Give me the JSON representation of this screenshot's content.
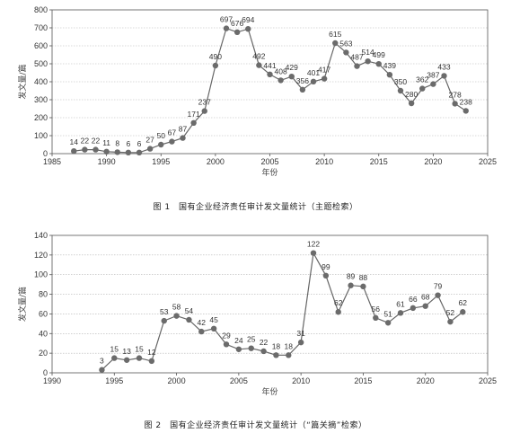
{
  "chart_data": [
    {
      "type": "line",
      "caption": "图 1　国有企业经济责任审计发文量统计（主题检索）",
      "xlabel": "年份",
      "ylabel": "发文量/篇",
      "xlim": [
        1985,
        2025
      ],
      "ylim": [
        0,
        800
      ],
      "xticks": [
        1985,
        1990,
        1995,
        2000,
        2005,
        2010,
        2015,
        2020,
        2025
      ],
      "yticks": [
        0,
        100,
        200,
        300,
        400,
        500,
        600,
        700,
        800
      ],
      "grid": "horizontal-dotted",
      "x": [
        1987,
        1988,
        1989,
        1990,
        1991,
        1992,
        1993,
        1994,
        1995,
        1996,
        1997,
        1998,
        1999,
        2000,
        2001,
        2002,
        2003,
        2004,
        2005,
        2006,
        2007,
        2008,
        2009,
        2010,
        2011,
        2012,
        2013,
        2014,
        2015,
        2016,
        2017,
        2018,
        2019,
        2020,
        2021,
        2022,
        2023
      ],
      "values": [
        14,
        22,
        22,
        11,
        8,
        6,
        6,
        27,
        50,
        67,
        87,
        171,
        237,
        490,
        697,
        676,
        694,
        492,
        441,
        408,
        429,
        356,
        401,
        417,
        615,
        563,
        487,
        514,
        499,
        439,
        350,
        280,
        362,
        387,
        433,
        278,
        238
      ],
      "labels": [
        "14",
        "22",
        "22",
        "11",
        "8",
        "6",
        "6",
        "27",
        "50",
        "67",
        "87",
        "171",
        "237",
        "490",
        "697",
        "676",
        "694",
        "492",
        "441",
        "408",
        "429",
        "356",
        "401",
        "417",
        "615",
        "563",
        "487",
        "514",
        "499",
        "439",
        "350",
        "280",
        "362",
        "387",
        "433",
        "278",
        "238"
      ]
    },
    {
      "type": "line",
      "caption": "图 2　国有企业经济责任审计发文量统计（“篇关摘”检索）",
      "xlabel": "年份",
      "ylabel": "发文量/篇",
      "xlim": [
        1990,
        2025
      ],
      "ylim": [
        0,
        140
      ],
      "xticks": [
        1990,
        1995,
        2000,
        2005,
        2010,
        2015,
        2020,
        2025
      ],
      "yticks": [
        0,
        20,
        40,
        60,
        80,
        100,
        120,
        140
      ],
      "grid": "horizontal-dotted",
      "x": [
        1994,
        1995,
        1996,
        1997,
        1998,
        1999,
        2000,
        2001,
        2002,
        2003,
        2004,
        2005,
        2006,
        2007,
        2008,
        2009,
        2010,
        2011,
        2012,
        2013,
        2014,
        2015,
        2016,
        2017,
        2018,
        2019,
        2020,
        2021,
        2022,
        2023
      ],
      "values": [
        3,
        15,
        13,
        15,
        12,
        53,
        58,
        54,
        42,
        45,
        29,
        24,
        25,
        22,
        18,
        18,
        31,
        122,
        99,
        62,
        89,
        88,
        56,
        51,
        61,
        66,
        68,
        79,
        52,
        62
      ],
      "labels": [
        "3",
        "15",
        "13",
        "15",
        "12",
        "53",
        "58",
        "54",
        "42",
        "45",
        "29",
        "24",
        "25",
        "22",
        "18",
        "18",
        "31",
        "122",
        "99",
        "62",
        "89",
        "88",
        "56",
        "51",
        "61",
        "66",
        "68",
        "79",
        "52",
        "62"
      ]
    }
  ],
  "captions": {
    "fig1": "图 1　国有企业经济责任审计发文量统计（主题检索）",
    "fig2": "图 2　国有企业经济责任审计发文量统计（“篇关摘”检索）"
  }
}
